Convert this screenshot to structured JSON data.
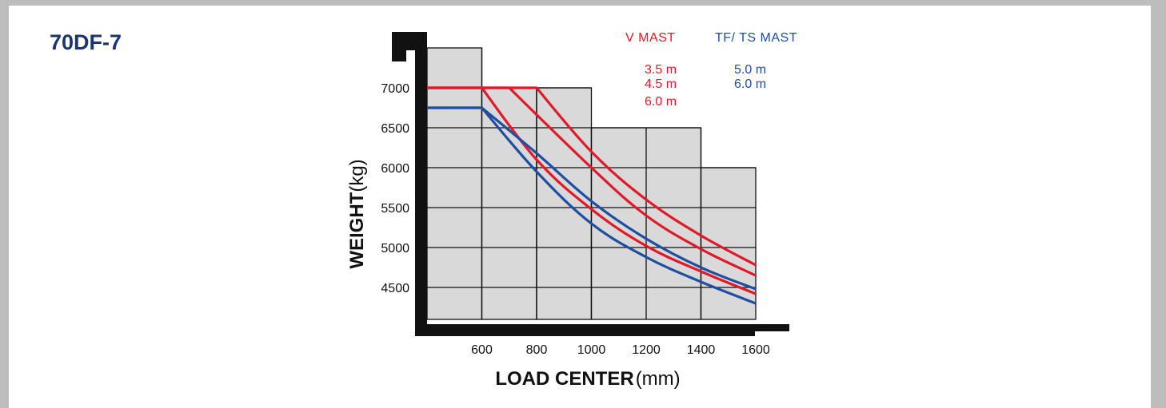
{
  "model": "70DF-7",
  "chart_data": {
    "type": "line",
    "xlabel": "LOAD CENTER",
    "xlabel_unit": "(mm)",
    "ylabel": "WEIGHT",
    "ylabel_unit": "(kg)",
    "x_ticks": [
      "600",
      "800",
      "1000",
      "1200",
      "1400",
      "1600"
    ],
    "y_ticks": [
      "4500",
      "5000",
      "5500",
      "6000",
      "6500",
      "7000"
    ],
    "xlim": [
      400,
      1600
    ],
    "ylim": [
      4100,
      7500
    ],
    "grid": true,
    "colors": {
      "v_mast": "#e11a2a",
      "tf_ts_mast": "#1f4fa0",
      "grid_fill": "#d9d9d9",
      "frame": "#111111"
    },
    "legend": {
      "v_heading": "V  MAST",
      "tf_heading": "TF/ TS  MAST",
      "v_items": [
        "3.5 m",
        "4.5 m",
        "6.0 m"
      ],
      "tf_items": [
        "5.0 m",
        "6.0 m"
      ]
    },
    "series": [
      {
        "group": "v",
        "x": [
          400,
          800,
          1000,
          1200,
          1400,
          1600
        ],
        "y": [
          7000,
          7000,
          6200,
          5600,
          5150,
          4780
        ]
      },
      {
        "group": "v",
        "x": [
          400,
          700,
          1000,
          1200,
          1400,
          1600
        ],
        "y": [
          7000,
          7000,
          6000,
          5400,
          4980,
          4650
        ]
      },
      {
        "group": "v",
        "x": [
          400,
          600,
          800,
          1000,
          1200,
          1400,
          1600
        ],
        "y": [
          7000,
          7000,
          6100,
          5480,
          5020,
          4700,
          4420
        ]
      },
      {
        "group": "tf",
        "x": [
          400,
          600,
          800,
          1000,
          1200,
          1400,
          1600
        ],
        "y": [
          6750,
          6750,
          6180,
          5580,
          5110,
          4750,
          4480
        ]
      },
      {
        "group": "tf",
        "x": [
          400,
          600,
          800,
          1000,
          1200,
          1400,
          1600
        ],
        "y": [
          6750,
          6750,
          5950,
          5300,
          4880,
          4570,
          4300
        ]
      }
    ]
  }
}
